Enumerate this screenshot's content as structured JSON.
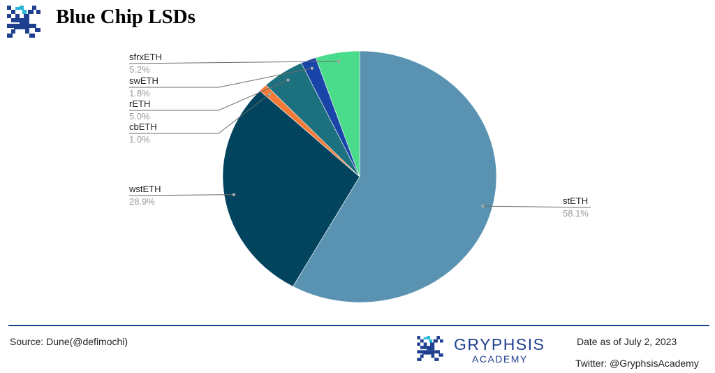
{
  "header": {
    "title": "Blue Chip LSDs"
  },
  "chart_data": {
    "type": "pie",
    "title": "",
    "slices": [
      {
        "label": "stETH",
        "value": 58.1,
        "display": "58.1%",
        "color": "#5A93B2"
      },
      {
        "label": "wstETH",
        "value": 28.9,
        "display": "28.9%",
        "color": "#02445E"
      },
      {
        "label": "cbETH",
        "value": 1.0,
        "display": "1.0%",
        "color": "#F47A37"
      },
      {
        "label": "rETH",
        "value": 5.0,
        "display": "5.0%",
        "color": "#1D717F"
      },
      {
        "label": "swETH",
        "value": 1.8,
        "display": "1.8%",
        "color": "#1945A8"
      },
      {
        "label": "sfrxETH",
        "value": 5.2,
        "display": "5.2%",
        "color": "#4ADC8A"
      }
    ],
    "start_angle_deg": 0,
    "direction": "clockwise",
    "labels": "outside with leader lines"
  },
  "footer": {
    "source": "Source: Dune(@defimochi)",
    "brand_name": "GRYPHSIS",
    "brand_sub": "ACADEMY",
    "date_note": "Date as of July 2, 2023",
    "twitter": "Twitter: @GryphsisAcademy"
  },
  "colors": {
    "brand_blue": "#1f3f8f",
    "logo_dark": "#1f3f8f",
    "logo_accent": "#27b8d8"
  }
}
